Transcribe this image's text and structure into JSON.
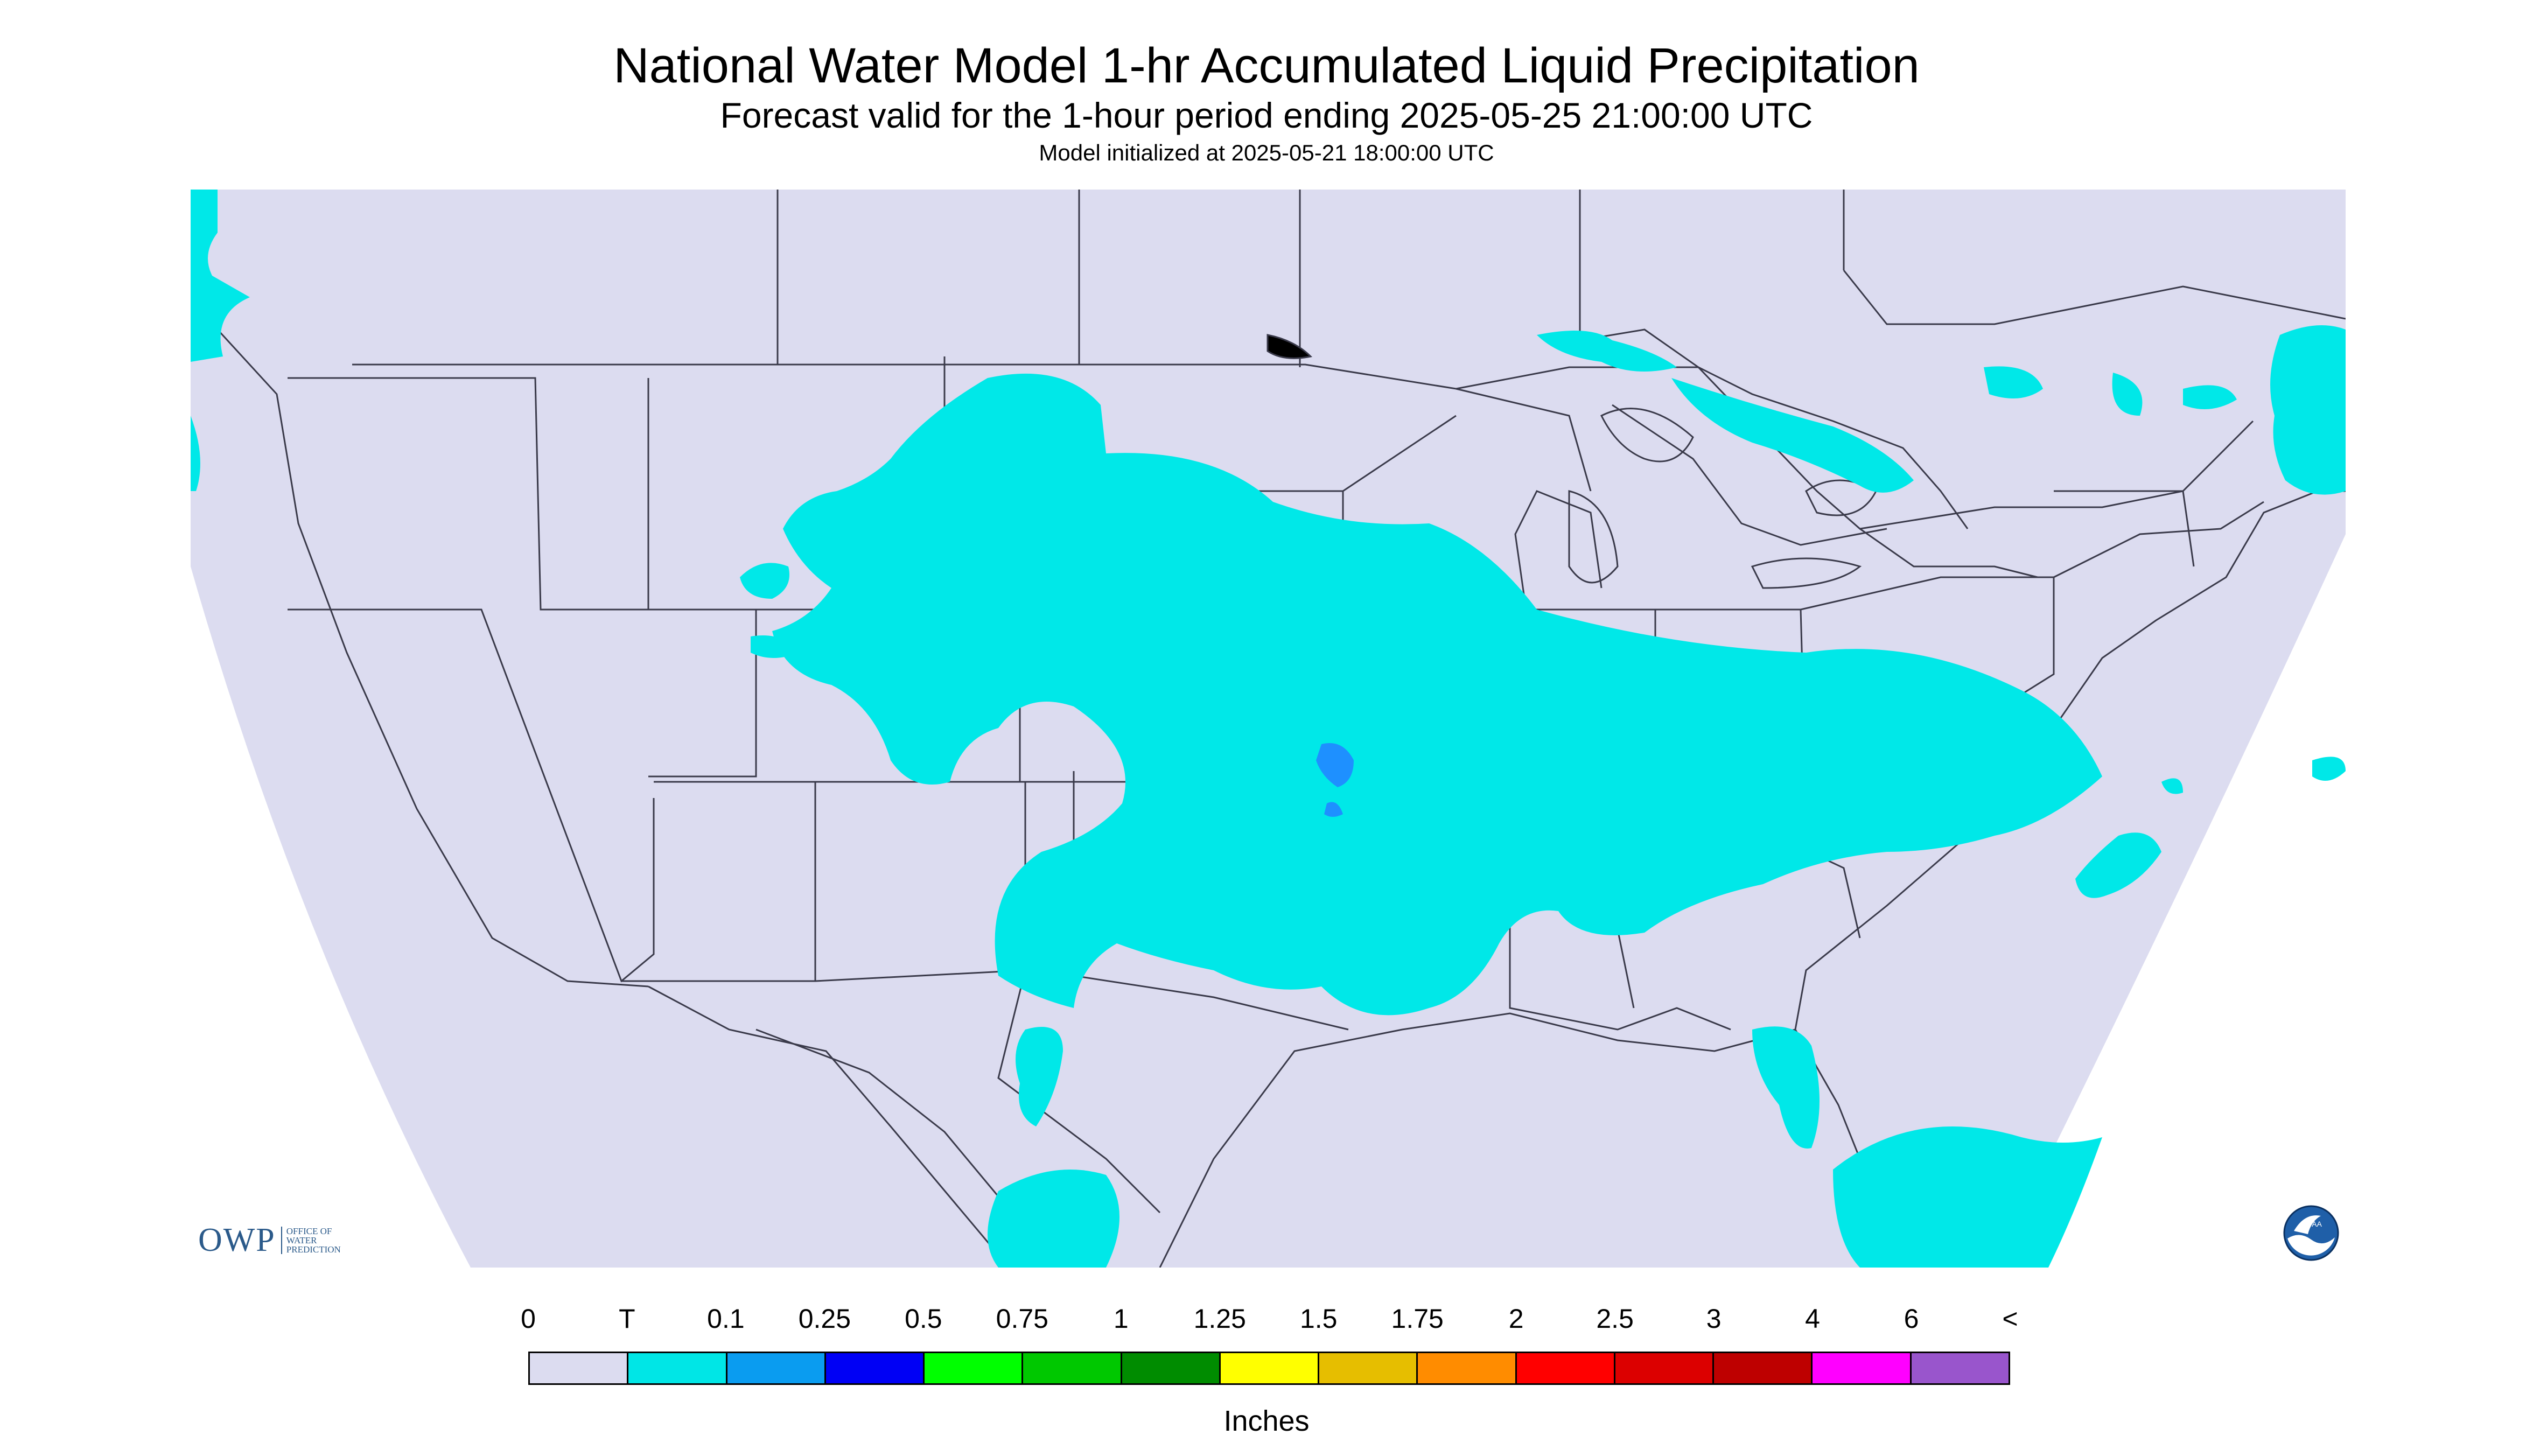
{
  "header": {
    "title": "National Water Model 1-hr Accumulated Liquid Precipitation",
    "subtitle": "Forecast valid for the 1-hour period ending 2025-05-25 21:00:00 UTC",
    "initialized": "Model initialized at 2025-05-21 18:00:00 UTC"
  },
  "map": {
    "background_color": "#dcdcf0",
    "region": "CONUS",
    "precip_color": "#00e8e8",
    "precip_heavier_color": "#1e90ff"
  },
  "legend": {
    "labels": [
      "0",
      "T",
      "0.1",
      "0.25",
      "0.5",
      "0.75",
      "1",
      "1.25",
      "1.5",
      "1.75",
      "2",
      "2.5",
      "3",
      "4",
      "6",
      "<"
    ],
    "colors": [
      "#dcdcf0",
      "#00e6e6",
      "#0a9cf0",
      "#0000f5",
      "#00ff00",
      "#00c800",
      "#008c00",
      "#ffff00",
      "#e6be00",
      "#ff8c00",
      "#ff0000",
      "#dc0000",
      "#be0000",
      "#ff00ff",
      "#9955cc"
    ],
    "units": "Inches"
  },
  "logos": {
    "owp_mark": "OWP",
    "owp_text": "OFFICE OF\nWATER\nPREDICTION",
    "noaa_text": "NOAA",
    "owp_icon": "owp-logo",
    "noaa_icon": "noaa-logo"
  }
}
